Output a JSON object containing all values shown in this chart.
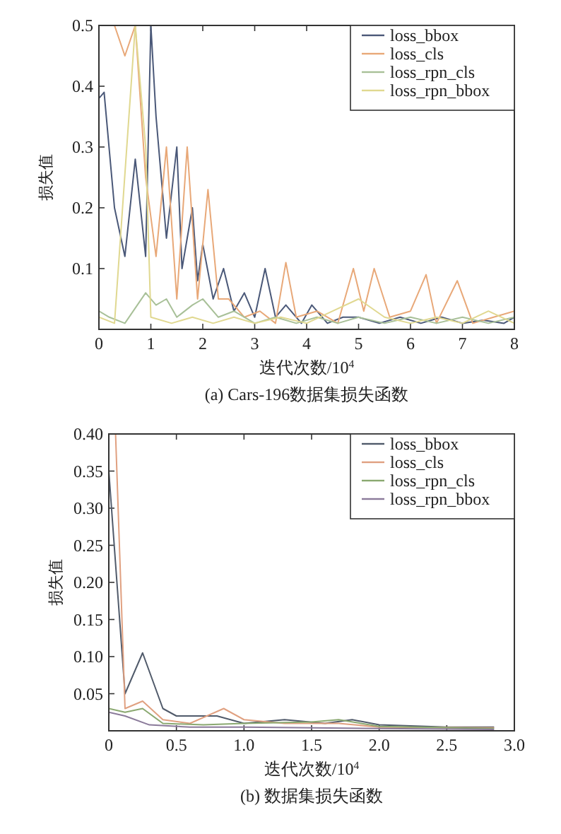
{
  "chart_data": [
    {
      "type": "line",
      "title": "(a) Cars-196数据集损失函数",
      "xlabel": "迭代次数/10$^{4}$",
      "ylabel": "损失值",
      "xlim": [
        0,
        8
      ],
      "ylim": [
        0,
        0.5
      ],
      "xticks": [
        0,
        1,
        2,
        3,
        4,
        5,
        6,
        7,
        8
      ],
      "yticks": [
        0.1,
        0.2,
        0.3,
        0.4,
        0.5
      ],
      "legend": "top right",
      "grid": false,
      "series": [
        {
          "name": "loss_bbox",
          "color": "#4a5878",
          "x": [
            0,
            0.1,
            0.3,
            0.5,
            0.7,
            0.9,
            1.0,
            1.1,
            1.3,
            1.5,
            1.6,
            1.8,
            1.9,
            2.0,
            2.2,
            2.4,
            2.6,
            2.8,
            3.0,
            3.2,
            3.4,
            3.6,
            3.9,
            4.1,
            4.4,
            4.7,
            5.0,
            5.4,
            5.8,
            6.2,
            6.6,
            7.0,
            7.4,
            7.8,
            8.0
          ],
          "values": [
            0.38,
            0.39,
            0.2,
            0.12,
            0.28,
            0.12,
            0.5,
            0.35,
            0.15,
            0.3,
            0.1,
            0.2,
            0.08,
            0.14,
            0.05,
            0.1,
            0.03,
            0.06,
            0.02,
            0.1,
            0.02,
            0.04,
            0.01,
            0.04,
            0.01,
            0.02,
            0.02,
            0.01,
            0.02,
            0.01,
            0.02,
            0.01,
            0.015,
            0.01,
            0.02
          ]
        },
        {
          "name": "loss_cls",
          "color": "#e8a878",
          "x": [
            0.3,
            0.5,
            0.7,
            0.9,
            1.1,
            1.3,
            1.5,
            1.7,
            1.9,
            2.1,
            2.3,
            2.5,
            2.8,
            3.1,
            3.4,
            3.6,
            3.8,
            4.2,
            4.6,
            4.9,
            5.1,
            5.3,
            5.6,
            6.0,
            6.3,
            6.5,
            6.9,
            7.2,
            7.6,
            8.0
          ],
          "values": [
            0.5,
            0.45,
            0.5,
            0.25,
            0.12,
            0.3,
            0.05,
            0.3,
            0.05,
            0.23,
            0.05,
            0.05,
            0.02,
            0.03,
            0.01,
            0.11,
            0.02,
            0.03,
            0.01,
            0.1,
            0.03,
            0.1,
            0.02,
            0.03,
            0.09,
            0.01,
            0.08,
            0.01,
            0.02,
            0.03
          ]
        },
        {
          "name": "loss_rpn_cls",
          "color": "#a8c098",
          "x": [
            0,
            0.2,
            0.5,
            0.9,
            1.1,
            1.3,
            1.5,
            1.8,
            2.0,
            2.3,
            2.6,
            3.0,
            3.4,
            3.8,
            4.2,
            4.6,
            5.0,
            5.5,
            6.0,
            6.5,
            7.0,
            7.5,
            8.0
          ],
          "values": [
            0.03,
            0.02,
            0.01,
            0.06,
            0.04,
            0.05,
            0.02,
            0.04,
            0.05,
            0.02,
            0.03,
            0.01,
            0.02,
            0.01,
            0.02,
            0.01,
            0.02,
            0.01,
            0.02,
            0.01,
            0.02,
            0.01,
            0.02
          ]
        },
        {
          "name": "loss_rpn_bbox",
          "color": "#e0d890",
          "x": [
            0,
            0.3,
            0.7,
            0.9,
            1.0,
            1.4,
            1.8,
            2.2,
            2.6,
            3.0,
            3.5,
            4.0,
            4.5,
            5.0,
            5.5,
            6.0,
            6.5,
            7.0,
            7.5,
            8.0
          ],
          "values": [
            0.02,
            0.01,
            0.5,
            0.3,
            0.02,
            0.01,
            0.02,
            0.01,
            0.02,
            0.01,
            0.02,
            0.01,
            0.03,
            0.05,
            0.02,
            0.01,
            0.02,
            0.01,
            0.03,
            0.01
          ]
        }
      ]
    },
    {
      "type": "line",
      "title": "(b) 数据集损失函数",
      "xlabel": "迭代次数/10$^{4}$",
      "ylabel": "损失值",
      "xlim": [
        0,
        3
      ],
      "ylim": [
        0,
        0.4
      ],
      "xticks": [
        0,
        {
          "value": 0.5,
          "label": "0.5"
        },
        {
          "value": 1,
          "label": "1.0"
        },
        {
          "value": 1.5,
          "label": "1.5"
        },
        {
          "value": 2,
          "label": "2.0"
        },
        {
          "value": 2.5,
          "label": "2.5"
        },
        {
          "value": 3,
          "label": "3.0"
        }
      ],
      "yticks": [
        0.05,
        {
          "value": 0.1,
          "label": "0.10"
        },
        0.15,
        {
          "value": 0.2,
          "label": "0.20"
        },
        0.25,
        {
          "value": 0.3,
          "label": "0.30"
        },
        0.35,
        {
          "value": 0.4,
          "label": "0.40"
        }
      ],
      "legend": "top right",
      "grid": false,
      "series": [
        {
          "name": "loss_bbox",
          "color": "#505a6a",
          "x": [
            0,
            0.12,
            0.25,
            0.4,
            0.5,
            0.8,
            1.0,
            1.3,
            1.6,
            1.8,
            2.0,
            2.5,
            2.85
          ],
          "values": [
            0.35,
            0.05,
            0.105,
            0.03,
            0.02,
            0.02,
            0.01,
            0.015,
            0.01,
            0.015,
            0.008,
            0.005,
            0.005
          ]
        },
        {
          "name": "loss_cls",
          "color": "#e0a080",
          "x": [
            0,
            0.05,
            0.12,
            0.25,
            0.4,
            0.6,
            0.85,
            1.0,
            1.3,
            1.7,
            2.0,
            2.85
          ],
          "values": [
            0.4,
            0.4,
            0.03,
            0.04,
            0.015,
            0.01,
            0.03,
            0.015,
            0.01,
            0.01,
            0.005,
            0.004
          ]
        },
        {
          "name": "loss_rpn_cls",
          "color": "#8aa870",
          "x": [
            0,
            0.12,
            0.25,
            0.4,
            0.7,
            1.0,
            1.5,
            1.7,
            2.0,
            2.85
          ],
          "values": [
            0.03,
            0.025,
            0.03,
            0.01,
            0.008,
            0.01,
            0.012,
            0.015,
            0.006,
            0.003
          ]
        },
        {
          "name": "loss_rpn_bbox",
          "color": "#8a7a9a",
          "x": [
            0,
            0.12,
            0.3,
            0.6,
            1.0,
            1.5,
            2.0,
            2.85
          ],
          "values": [
            0.025,
            0.02,
            0.008,
            0.005,
            0.005,
            0.004,
            0.003,
            0.002
          ]
        }
      ]
    }
  ]
}
